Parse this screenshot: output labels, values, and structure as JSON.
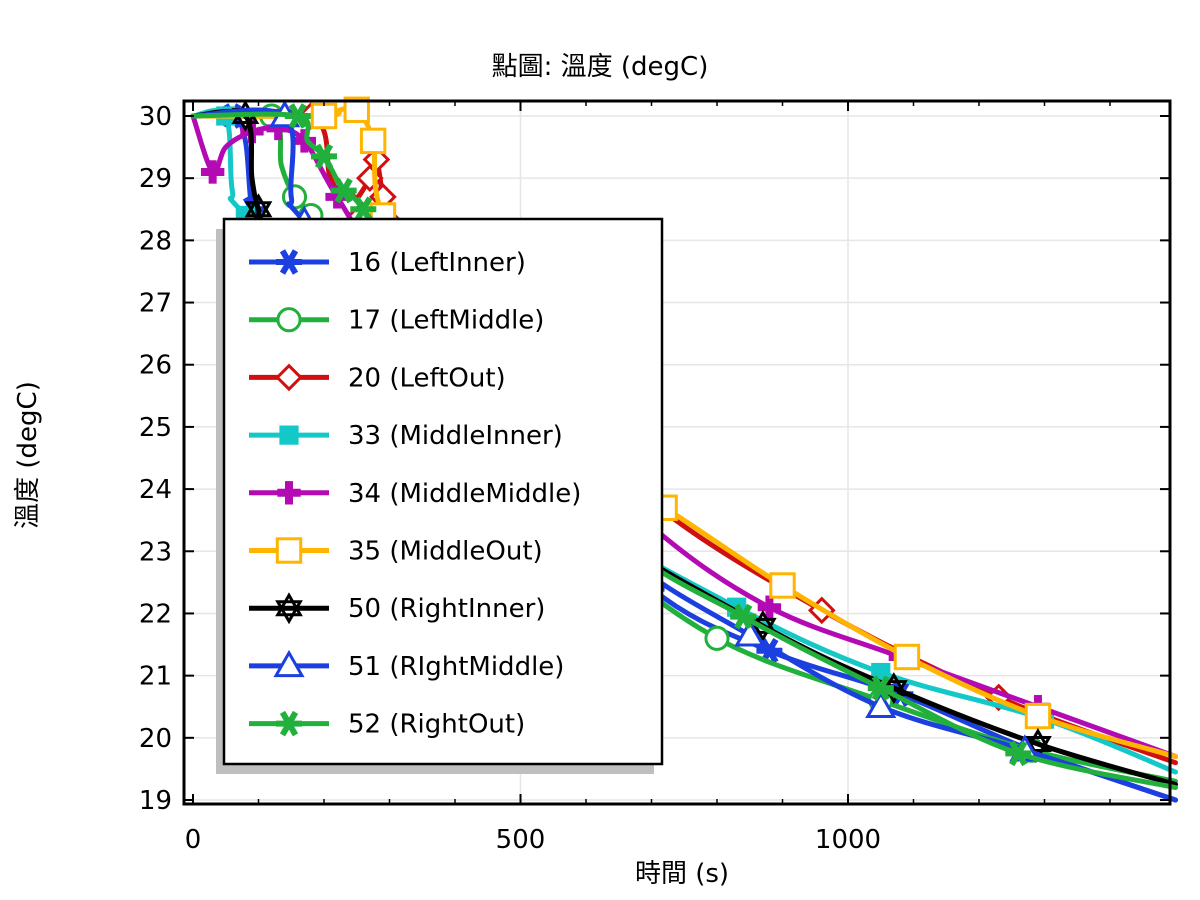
{
  "chart_data": {
    "type": "line",
    "title": "點圖: 溫度 (degC)",
    "xlabel": "時間 (s)",
    "ylabel": "溫度 (degC)",
    "xlim": [
      0,
      1500
    ],
    "ylim": [
      19,
      30.2
    ],
    "x_ticks": [
      0,
      500,
      1000
    ],
    "y_ticks": [
      19,
      20,
      21,
      22,
      23,
      24,
      25,
      26,
      27,
      28,
      29,
      30
    ],
    "grid": true,
    "legend_position": "left",
    "series": [
      {
        "name": "16 (LeftInner)",
        "color": "#1c3fe0",
        "marker": "asterisk",
        "points": [
          [
            0,
            30
          ],
          [
            60,
            30
          ],
          [
            80,
            29.6
          ],
          [
            90,
            28.5
          ],
          [
            110,
            28
          ],
          [
            300,
            26
          ],
          [
            500,
            24.6
          ],
          [
            700,
            22.4
          ],
          [
            880,
            21.4
          ],
          [
            1080,
            20.7
          ],
          [
            1280,
            19.8
          ],
          [
            1500,
            19.0
          ]
        ]
      },
      {
        "name": "17 (LeftMiddle)",
        "color": "#22b03c",
        "marker": "circle",
        "points": [
          [
            0,
            30
          ],
          [
            120,
            30
          ],
          [
            135,
            29.2
          ],
          [
            155,
            28.7
          ],
          [
            180,
            28.4
          ],
          [
            400,
            25.5
          ],
          [
            600,
            23.2
          ],
          [
            800,
            21.6
          ],
          [
            1050,
            20.6
          ],
          [
            1280,
            19.8
          ],
          [
            1500,
            19.3
          ]
        ]
      },
      {
        "name": "20 (LeftOut)",
        "color": "#d01010",
        "marker": "diamond",
        "points": [
          [
            0,
            30
          ],
          [
            180,
            30
          ],
          [
            210,
            29
          ],
          [
            240,
            28.6
          ],
          [
            270,
            29
          ],
          [
            280,
            29.3
          ],
          [
            290,
            28.7
          ],
          [
            300,
            28.3
          ],
          [
            500,
            26
          ],
          [
            700,
            23.8
          ],
          [
            960,
            22.05
          ],
          [
            1230,
            20.65
          ],
          [
            1500,
            19.6
          ]
        ]
      },
      {
        "name": "33 (MiddleInner)",
        "color": "#14c8c8",
        "marker": "square-filled",
        "points": [
          [
            0,
            30
          ],
          [
            50,
            30
          ],
          [
            60,
            28.8
          ],
          [
            80,
            28.4
          ],
          [
            300,
            26
          ],
          [
            550,
            23.8
          ],
          [
            830,
            22.1
          ],
          [
            1050,
            21.05
          ],
          [
            1300,
            20.3
          ],
          [
            1500,
            19.45
          ]
        ]
      },
      {
        "name": "34 (MiddleMiddle)",
        "color": "#b40ab4",
        "marker": "plus",
        "points": [
          [
            0,
            30
          ],
          [
            30,
            29.1
          ],
          [
            50,
            29.5
          ],
          [
            90,
            29.75
          ],
          [
            130,
            29.8
          ],
          [
            170,
            29.6
          ],
          [
            220,
            28.7
          ],
          [
            300,
            27.5
          ],
          [
            500,
            25.5
          ],
          [
            700,
            23.4
          ],
          [
            880,
            22.1
          ],
          [
            1080,
            21.3
          ],
          [
            1290,
            20.5
          ],
          [
            1500,
            19.7
          ]
        ]
      },
      {
        "name": "35 (MiddleOut)",
        "color": "#ffb400",
        "marker": "square",
        "points": [
          [
            0,
            30
          ],
          [
            200,
            30
          ],
          [
            225,
            30.1
          ],
          [
            250,
            30.1
          ],
          [
            275,
            29.6
          ],
          [
            290,
            28.4
          ],
          [
            400,
            26.5
          ],
          [
            600,
            24.4
          ],
          [
            720,
            23.7
          ],
          [
            900,
            22.45
          ],
          [
            1090,
            21.3
          ],
          [
            1290,
            20.35
          ],
          [
            1500,
            19.7
          ]
        ]
      },
      {
        "name": "50 (RightInner)",
        "color": "#000000",
        "marker": "star",
        "points": [
          [
            0,
            30
          ],
          [
            80,
            30
          ],
          [
            90,
            29
          ],
          [
            100,
            28.5
          ],
          [
            120,
            28
          ],
          [
            300,
            26
          ],
          [
            550,
            23.8
          ],
          [
            870,
            21.8
          ],
          [
            1070,
            20.8
          ],
          [
            1290,
            19.9
          ],
          [
            1500,
            19.25
          ]
        ]
      },
      {
        "name": "51 (RIghtMiddle)",
        "color": "#1c3fe0",
        "marker": "triangle",
        "points": [
          [
            0,
            30
          ],
          [
            140,
            30
          ],
          [
            150,
            28.7
          ],
          [
            170,
            28.3
          ],
          [
            400,
            25.6
          ],
          [
            650,
            23
          ],
          [
            850,
            21.65
          ],
          [
            1050,
            20.5
          ],
          [
            1270,
            19.8
          ],
          [
            1500,
            19.0
          ]
        ]
      },
      {
        "name": "52 (RightOut)",
        "color": "#22b03c",
        "marker": "asterisk",
        "points": [
          [
            0,
            30
          ],
          [
            160,
            30
          ],
          [
            175,
            29.6
          ],
          [
            200,
            29.35
          ],
          [
            230,
            28.8
          ],
          [
            260,
            28.5
          ],
          [
            450,
            25.8
          ],
          [
            650,
            23.2
          ],
          [
            840,
            21.95
          ],
          [
            1050,
            20.8
          ],
          [
            1260,
            19.75
          ],
          [
            1500,
            19.2
          ]
        ]
      }
    ]
  }
}
